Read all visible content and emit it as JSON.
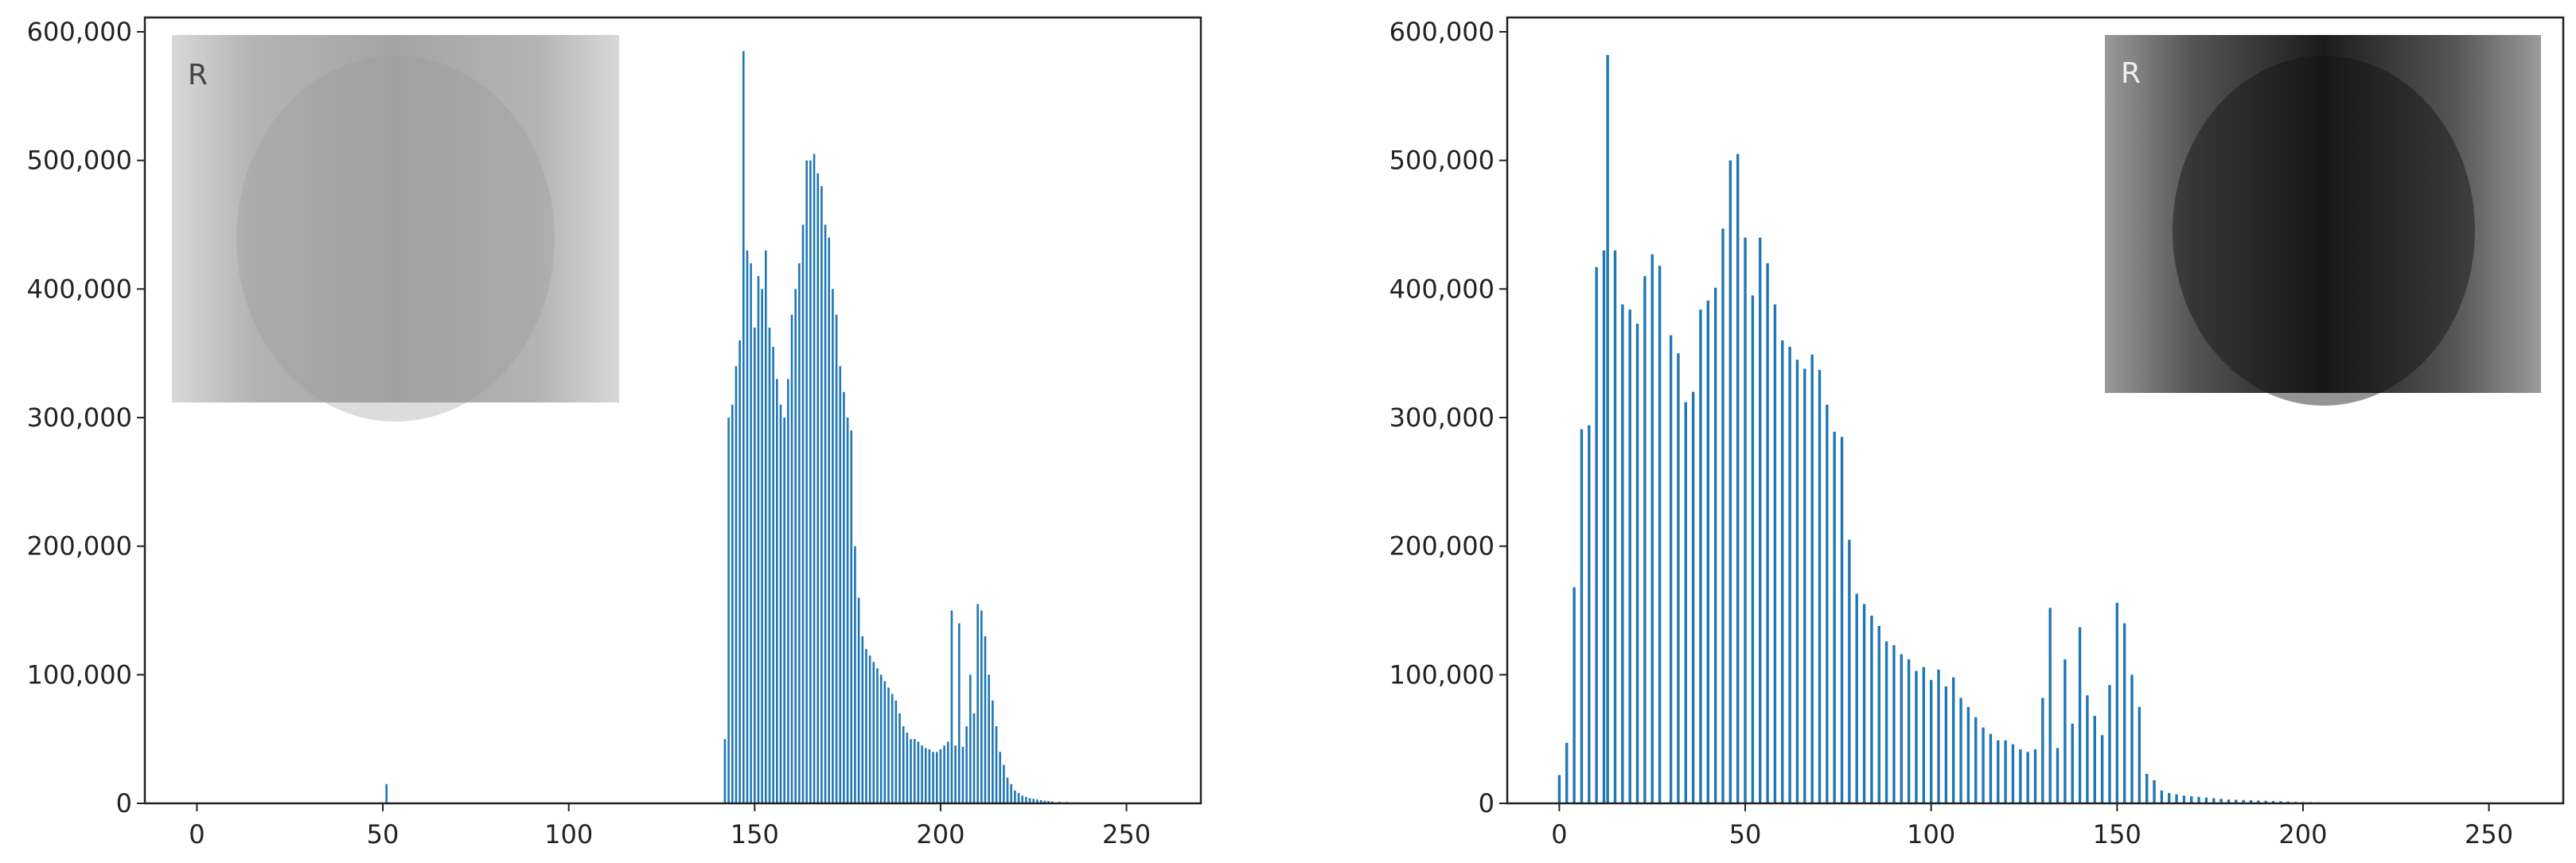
{
  "colors": {
    "bar": "#1f77b4",
    "axis": "#222222",
    "text": "#222222",
    "background": "#ffffff"
  },
  "chart_data": [
    {
      "type": "bar",
      "title": "",
      "xlabel": "",
      "ylabel": "",
      "xlim": [
        -14,
        270
      ],
      "ylim": [
        0,
        600000
      ],
      "grid": false,
      "x_ticks": [
        "0",
        "50",
        "100",
        "150",
        "200",
        "250"
      ],
      "y_ticks": [
        "0",
        "100,000",
        "200,000",
        "300,000",
        "400,000",
        "500,000",
        "600,000"
      ],
      "inset": {
        "label": "R",
        "tone": "light"
      },
      "x": [
        51,
        142,
        143,
        144,
        145,
        146,
        147,
        148,
        149,
        150,
        151,
        152,
        153,
        154,
        155,
        156,
        157,
        158,
        159,
        160,
        161,
        162,
        163,
        164,
        165,
        166,
        167,
        168,
        169,
        170,
        171,
        172,
        173,
        174,
        175,
        176,
        177,
        178,
        179,
        180,
        181,
        182,
        183,
        184,
        185,
        186,
        187,
        188,
        189,
        190,
        191,
        192,
        193,
        194,
        195,
        196,
        197,
        198,
        199,
        200,
        201,
        202,
        203,
        204,
        205,
        206,
        207,
        208,
        209,
        210,
        211,
        212,
        213,
        214,
        215,
        216,
        217,
        218,
        219,
        220,
        221,
        222,
        223,
        224,
        225,
        226,
        227,
        228,
        229,
        230,
        232,
        234,
        236,
        238,
        240,
        243,
        246,
        250
      ],
      "values": [
        15000,
        50000,
        300000,
        310000,
        340000,
        360000,
        585000,
        430000,
        420000,
        370000,
        410000,
        400000,
        430000,
        370000,
        355000,
        330000,
        310000,
        300000,
        330000,
        380000,
        400000,
        420000,
        450000,
        500000,
        500000,
        505000,
        490000,
        480000,
        450000,
        440000,
        400000,
        380000,
        340000,
        320000,
        300000,
        290000,
        200000,
        160000,
        130000,
        120000,
        115000,
        110000,
        105000,
        100000,
        95000,
        90000,
        85000,
        80000,
        70000,
        60000,
        55000,
        50000,
        50000,
        48000,
        45000,
        43000,
        42000,
        40000,
        40000,
        42000,
        45000,
        48000,
        150000,
        45000,
        140000,
        44000,
        60000,
        100000,
        70000,
        155000,
        150000,
        130000,
        100000,
        80000,
        60000,
        40000,
        30000,
        20000,
        15000,
        10000,
        8000,
        6000,
        5000,
        4000,
        3500,
        3000,
        2500,
        2000,
        1800,
        1500,
        1200,
        1000,
        800,
        600,
        400,
        300,
        200,
        100
      ]
    },
    {
      "type": "bar",
      "title": "",
      "xlabel": "",
      "ylabel": "",
      "xlim": [
        -14,
        270
      ],
      "ylim": [
        0,
        600000
      ],
      "grid": false,
      "x_ticks": [
        "0",
        "50",
        "100",
        "150",
        "200",
        "250"
      ],
      "y_ticks": [
        "0",
        "100,000",
        "200,000",
        "300,000",
        "400,000",
        "500,000",
        "600,000"
      ],
      "inset": {
        "label": "R",
        "tone": "dark"
      },
      "x": [
        0,
        2,
        4,
        6,
        8,
        10,
        12,
        13,
        15,
        17,
        19,
        21,
        23,
        25,
        27,
        30,
        32,
        34,
        36,
        38,
        40,
        42,
        44,
        46,
        48,
        50,
        52,
        54,
        56,
        58,
        60,
        62,
        64,
        66,
        68,
        70,
        72,
        74,
        76,
        78,
        80,
        82,
        84,
        86,
        88,
        90,
        92,
        94,
        96,
        98,
        100,
        102,
        104,
        106,
        108,
        110,
        112,
        114,
        116,
        118,
        120,
        122,
        124,
        126,
        128,
        130,
        132,
        134,
        136,
        138,
        140,
        142,
        144,
        146,
        148,
        150,
        152,
        154,
        156,
        158,
        160,
        162,
        164,
        166,
        168,
        170,
        172,
        174,
        176,
        178,
        180,
        182,
        184,
        186,
        188,
        190,
        192,
        194,
        196,
        198,
        200,
        202,
        204,
        206,
        208,
        210,
        212,
        214,
        216,
        218,
        220,
        222,
        224,
        226,
        228,
        230,
        232,
        234,
        236,
        238,
        240,
        242,
        244,
        246,
        248,
        250,
        252,
        254
      ],
      "values": [
        22000,
        47000,
        168000,
        291000,
        294000,
        417000,
        430000,
        582000,
        430000,
        388000,
        384000,
        373000,
        410000,
        427000,
        418000,
        364000,
        350000,
        312000,
        320000,
        384000,
        391000,
        401000,
        447000,
        500000,
        505000,
        440000,
        395000,
        440000,
        420000,
        388000,
        360000,
        355000,
        345000,
        338000,
        349000,
        337000,
        310000,
        289000,
        285000,
        205000,
        163000,
        155000,
        146000,
        138000,
        126000,
        123000,
        116000,
        112000,
        103000,
        106000,
        96000,
        104000,
        91000,
        98000,
        82000,
        75000,
        67000,
        59000,
        54000,
        49000,
        49000,
        46000,
        42000,
        40000,
        42000,
        82000,
        152000,
        43000,
        112000,
        62000,
        137000,
        84000,
        68000,
        53000,
        92000,
        156000,
        140000,
        100000,
        75000,
        23000,
        18000,
        10000,
        8000,
        7000,
        6000,
        5500,
        5000,
        4500,
        4000,
        3500,
        3000,
        2800,
        2600,
        2400,
        2200,
        2000,
        1800,
        1600,
        1400,
        1200,
        1000,
        900,
        800,
        700,
        600,
        500,
        450,
        400,
        350,
        300,
        250,
        200,
        150,
        120,
        100,
        80,
        60,
        50,
        40,
        30,
        20,
        15,
        10,
        8,
        6,
        4,
        3,
        2
      ]
    }
  ]
}
